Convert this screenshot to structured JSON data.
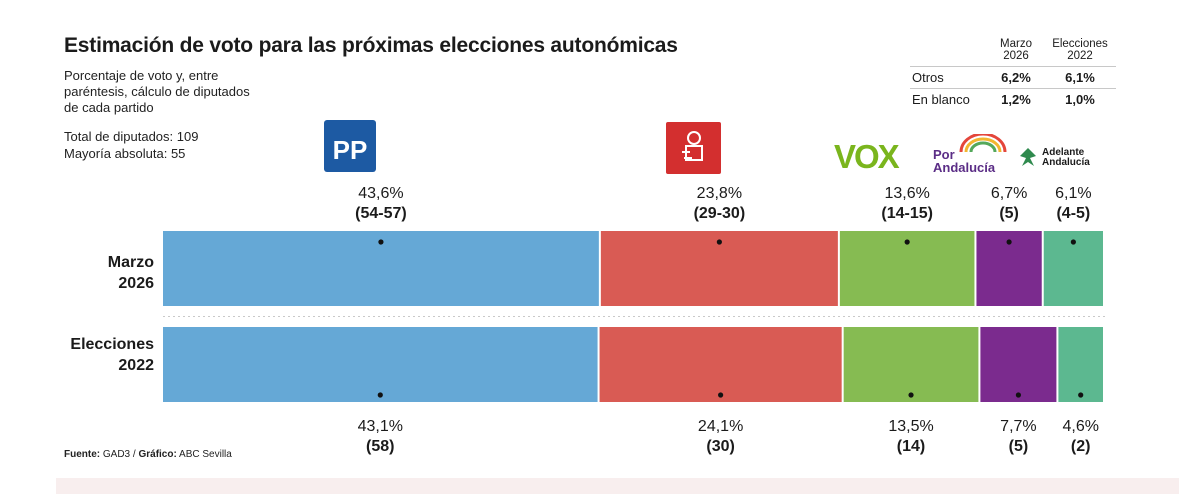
{
  "title": "Estimación de voto para las próximas elecciones autonómicas",
  "subtitle": "Porcentaje de voto y, entre paréntesis, cálculo de diputados de cada partido",
  "totals": {
    "total": "Total de diputados: 109",
    "majority": "Mayoría absoluta: 55"
  },
  "other_table": {
    "headers": [
      "Marzo 2026",
      "Elecciones 2022"
    ],
    "rows": [
      {
        "label": "Otros",
        "v2026": "6,2%",
        "v2022": "6,1%"
      },
      {
        "label": "En blanco",
        "v2026": "1,2%",
        "v2022": "1,0%"
      }
    ]
  },
  "logos": {
    "pp": "PP",
    "vox": "VOX",
    "por_andalucia": "Por Andalucía",
    "adelante": "Adelante Andalucía"
  },
  "source": {
    "fuente_label": "Fuente:",
    "fuente": "GAD3",
    "grafico_label": "Gráfico:",
    "grafico": "ABC Sevilla"
  },
  "chart_data": {
    "type": "bar",
    "orientation": "horizontal-stacked",
    "rows": [
      {
        "line1": "Marzo",
        "line2": "2026"
      },
      {
        "line1": "Elecciones",
        "line2": "2022"
      }
    ],
    "parties": [
      "PP",
      "PSOE",
      "Vox",
      "Por Andalucía",
      "Adelante Andalucía"
    ],
    "colors": [
      "#65a8d6",
      "#d95b54",
      "#86bb52",
      "#7b2b8e",
      "#5cb890"
    ],
    "series": [
      {
        "name": "Marzo 2026",
        "values": [
          43.6,
          23.8,
          13.6,
          6.7,
          6.1
        ],
        "pct_labels": [
          "43,6%",
          "23,8%",
          "13,6%",
          "6,7%",
          "6,1%"
        ],
        "seat_labels": [
          "(54-57)",
          "(29-30)",
          "(14-15)",
          "(5)",
          "(4-5)"
        ]
      },
      {
        "name": "Elecciones 2022",
        "values": [
          43.1,
          24.1,
          13.5,
          7.7,
          4.6
        ],
        "pct_labels": [
          "43,1%",
          "24,1%",
          "13,5%",
          "7,7%",
          "4,6%"
        ],
        "seat_labels": [
          "(58)",
          "(30)",
          "(14)",
          "(5)",
          "(2)"
        ]
      }
    ]
  }
}
